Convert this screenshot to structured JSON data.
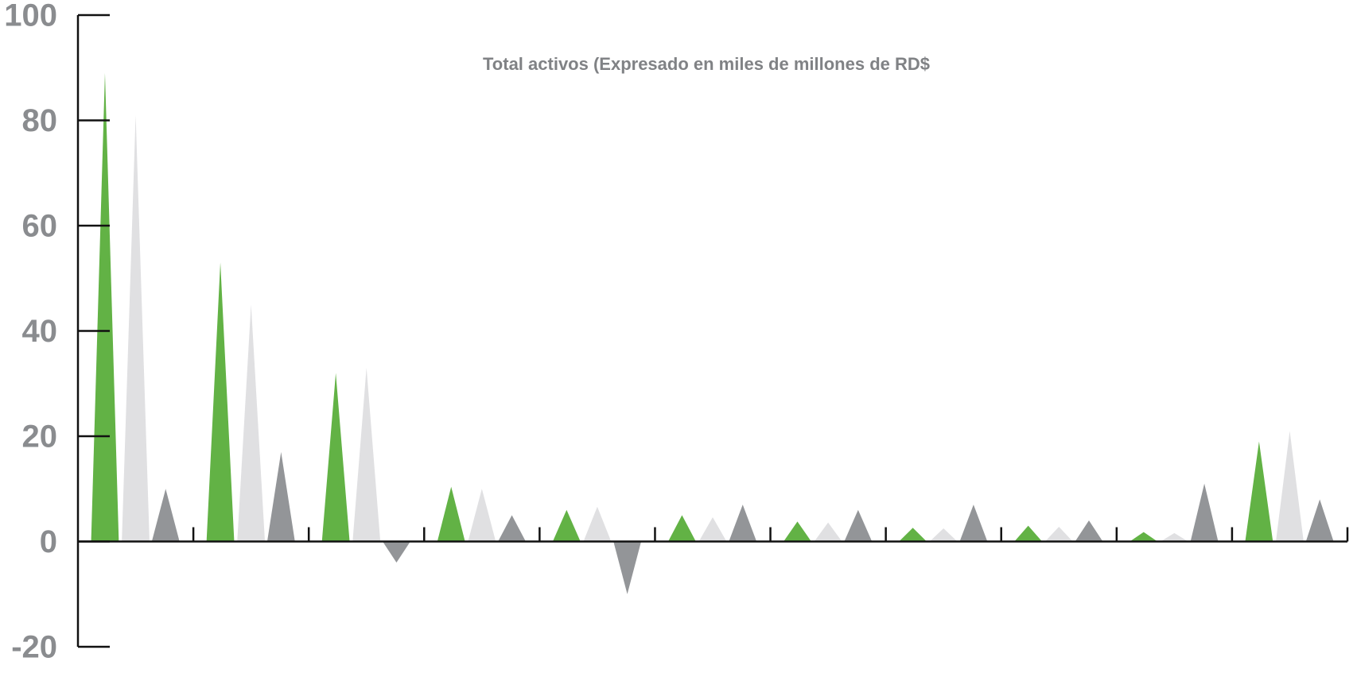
{
  "chart_data": {
    "type": "triangle-bar",
    "title": "Total activos (Expresado en miles de millones de RD$",
    "categories": [
      null,
      null,
      null,
      null,
      null,
      null,
      null,
      null,
      null,
      null,
      null
    ],
    "series": [
      {
        "color": "#62b245",
        "values": [
          89,
          53,
          32,
          10.4,
          6,
          5,
          3.8,
          2.6,
          3,
          1.8,
          19
        ]
      },
      {
        "color": "#e0e0e2",
        "values": [
          81,
          45,
          33,
          10,
          6.6,
          4.6,
          3.6,
          2.5,
          2.8,
          1.6,
          21
        ]
      },
      {
        "color": "#939598",
        "values": [
          10,
          17,
          -4,
          5,
          -10,
          7,
          6,
          7,
          4,
          11,
          8
        ]
      }
    ],
    "ylim": [
      -20,
      100
    ],
    "yticks": [
      -20,
      0,
      20,
      40,
      60,
      80,
      100
    ]
  }
}
